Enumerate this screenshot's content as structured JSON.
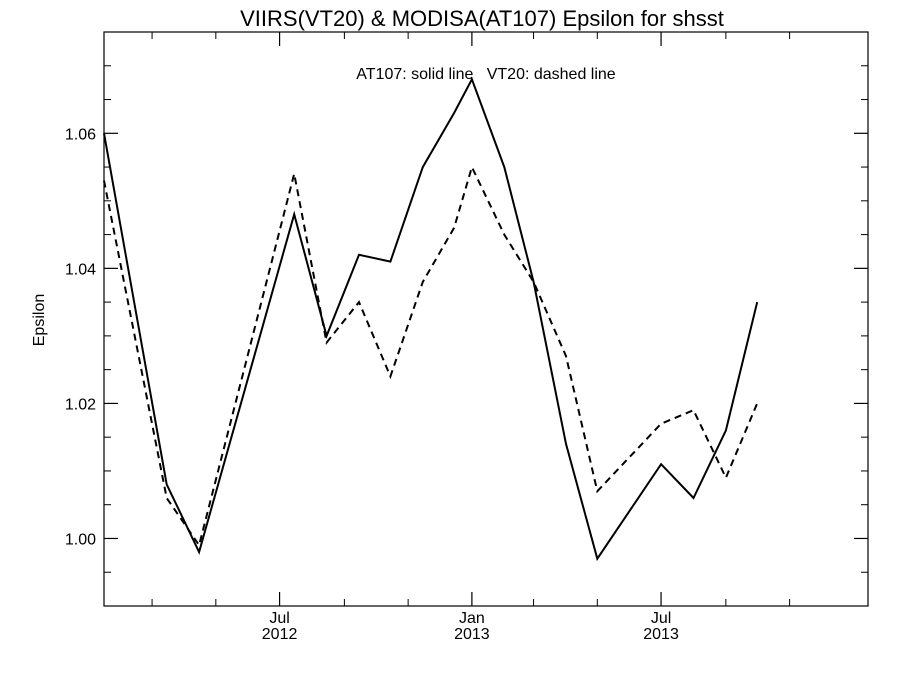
{
  "chart_data": {
    "type": "line",
    "title": "VIIRS(VT20) & MODISA(AT107)  Epsilon for shsst",
    "ylabel": "Epsilon",
    "xlabel": "",
    "annotation": "AT107: solid line   VT20: dashed line",
    "ylim": [
      0.99,
      1.075
    ],
    "xlim": [
      "2012-01-15",
      "2014-01-15"
    ],
    "yticks": [
      {
        "value": 1.0,
        "label": "1.00"
      },
      {
        "value": 1.02,
        "label": "1.02"
      },
      {
        "value": 1.04,
        "label": "1.04"
      },
      {
        "value": 1.06,
        "label": "1.06"
      }
    ],
    "yminor_ticks": [
      0.995,
      1.005,
      1.01,
      1.015,
      1.025,
      1.03,
      1.035,
      1.045,
      1.05,
      1.055,
      1.065,
      1.07
    ],
    "xticks": [
      {
        "value": "2012-07-01",
        "label": [
          "Jul",
          "2012"
        ]
      },
      {
        "value": "2013-01-01",
        "label": [
          "Jan",
          "2013"
        ]
      },
      {
        "value": "2013-07-01",
        "label": [
          "Jul",
          "2013"
        ]
      }
    ],
    "xminor_ticks": [
      "2012-03-01",
      "2012-05-01",
      "2012-09-01",
      "2012-11-01",
      "2013-03-01",
      "2013-05-01",
      "2013-09-01",
      "2013-11-01"
    ],
    "x": [
      "2012-01-15",
      "2012-03-15",
      "2012-04-15",
      "2012-06-15",
      "2012-07-15",
      "2012-08-15",
      "2012-09-15",
      "2012-10-15",
      "2012-11-15",
      "2012-12-15",
      "2013-01-01",
      "2013-01-15",
      "2013-02-15",
      "2013-03-15",
      "2013-04-15",
      "2013-05-15",
      "2013-07-15",
      "2013-08-15",
      "2013-09-15",
      "2013-10-15",
      "2013-11-15"
    ],
    "series": [
      {
        "name": "AT107",
        "style": "solid",
        "x": [
          "2012-01-15",
          "2012-03-15",
          "2012-04-15",
          "2012-07-15",
          "2012-08-15",
          "2012-09-15",
          "2012-10-15",
          "2012-11-15",
          "2012-12-15",
          "2013-01-01",
          "2013-02-01",
          "2013-03-01",
          "2013-04-01",
          "2013-05-01",
          "2013-07-01",
          "2013-08-01",
          "2013-09-01",
          "2013-10-01"
        ],
        "values": [
          1.06,
          1.008,
          0.998,
          1.048,
          1.03,
          1.042,
          1.041,
          1.055,
          1.063,
          1.068,
          1.055,
          1.038,
          1.014,
          0.997,
          1.011,
          1.006,
          1.016,
          1.035
        ]
      },
      {
        "name": "VT20",
        "style": "dashed",
        "x": [
          "2012-01-15",
          "2012-03-15",
          "2012-04-15",
          "2012-07-15",
          "2012-08-15",
          "2012-09-15",
          "2012-10-15",
          "2012-11-15",
          "2012-12-15",
          "2013-01-01",
          "2013-02-01",
          "2013-03-01",
          "2013-04-01",
          "2013-05-01",
          "2013-07-01",
          "2013-08-01",
          "2013-09-01",
          "2013-10-01"
        ],
        "values": [
          1.053,
          1.006,
          0.999,
          1.054,
          1.029,
          1.035,
          1.024,
          1.038,
          1.046,
          1.055,
          1.045,
          1.038,
          1.027,
          1.007,
          1.017,
          1.019,
          1.009,
          1.02
        ]
      }
    ],
    "grid": false,
    "line_color": "#000000"
  }
}
